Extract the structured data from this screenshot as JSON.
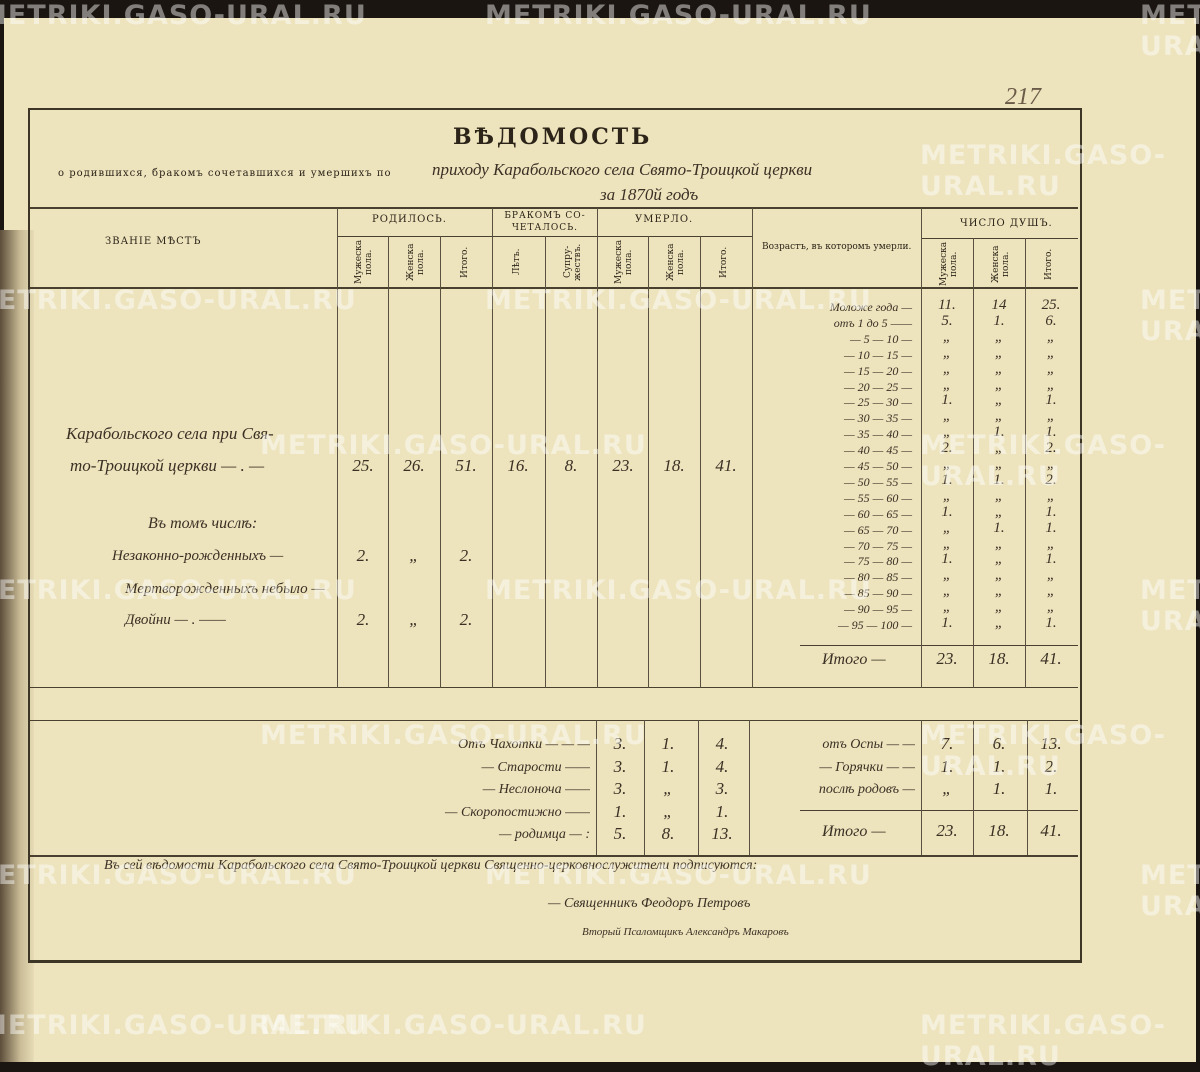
{
  "page_number": "217",
  "watermark": "METRIKI.GASO-URAL.RU",
  "header": {
    "title": "ВѢДОМОСТЬ",
    "subtitle_printed": "о родившихся, бракомъ сочетавшихся и умершихъ по",
    "subtitle_handwritten": "приходу Карабольского села Свято-Троицкой церкви",
    "year": "за 1870й годъ"
  },
  "columns": {
    "place": "ЗВАНІЕ МѢСТЪ",
    "born": {
      "label": "РОДИЛОСЬ.",
      "sub": [
        "Мужеска пола.",
        "Женска пола.",
        "Итого."
      ]
    },
    "married": {
      "label": "БРАКОМЪ СО-ЧЕТАЛОСЬ.",
      "sub": [
        "Лѣтъ.",
        "Супру-жествъ."
      ]
    },
    "died": {
      "label": "УМЕРЛО.",
      "sub": [
        "Мужеска пола.",
        "Женска пола.",
        "Итого."
      ]
    },
    "age": "Возрастъ, въ которомъ умерли.",
    "souls": {
      "label": "ЧИСЛО ДУШЪ.",
      "sub": [
        "Мужеска пола.",
        "Женска пола.",
        "Итого."
      ]
    }
  },
  "main_row": {
    "place_line1": "Карабольского села при Свя-",
    "place_line2": "то-Троицкой церкви — . —",
    "values": [
      "25.",
      "26.",
      "51.",
      "16.",
      "8.",
      "23.",
      "18.",
      "41."
    ]
  },
  "including": {
    "label": "Въ томъ числѣ:",
    "rows": [
      {
        "label": "Незаконно-рожденныхъ —",
        "values": [
          "2.",
          "„",
          "2."
        ]
      },
      {
        "label": "Мертворожденныхъ небыло —",
        "values": [
          "",
          "",
          ""
        ]
      },
      {
        "label": "Двойни — . ——",
        "values": [
          "2.",
          "„",
          "2."
        ]
      }
    ]
  },
  "ages": [
    {
      "label": "Моложе года —",
      "m": "11.",
      "f": "14",
      "t": "25."
    },
    {
      "label": "отъ 1 до 5 ——",
      "m": "5.",
      "f": "1.",
      "t": "6."
    },
    {
      "label": "— 5 — 10 —",
      "m": "„",
      "f": "„",
      "t": "„"
    },
    {
      "label": "— 10 — 15 —",
      "m": "„",
      "f": "„",
      "t": "„"
    },
    {
      "label": "— 15 — 20 —",
      "m": "„",
      "f": "„",
      "t": "„"
    },
    {
      "label": "— 20 — 25 —",
      "m": "„",
      "f": "„",
      "t": "„"
    },
    {
      "label": "— 25 — 30 —",
      "m": "1.",
      "f": "„",
      "t": "1."
    },
    {
      "label": "— 30 — 35 —",
      "m": "„",
      "f": "„",
      "t": "„"
    },
    {
      "label": "— 35 — 40 —",
      "m": "„",
      "f": "1.",
      "t": "1."
    },
    {
      "label": "— 40 — 45 —",
      "m": "2.",
      "f": "„",
      "t": "2."
    },
    {
      "label": "— 45 — 50 —",
      "m": "„",
      "f": "„",
      "t": "„"
    },
    {
      "label": "— 50 — 55 —",
      "m": "1.",
      "f": "1.",
      "t": "2."
    },
    {
      "label": "— 55 — 60 —",
      "m": "„",
      "f": "„",
      "t": "„"
    },
    {
      "label": "— 60 — 65 —",
      "m": "1.",
      "f": "„",
      "t": "1."
    },
    {
      "label": "— 65 — 70 —",
      "m": "„",
      "f": "1.",
      "t": "1."
    },
    {
      "label": "— 70 — 75 —",
      "m": "„",
      "f": "„",
      "t": "„"
    },
    {
      "label": "— 75 — 80 —",
      "m": "1.",
      "f": "„",
      "t": "1."
    },
    {
      "label": "— 80 — 85 —",
      "m": "„",
      "f": "„",
      "t": "„"
    },
    {
      "label": "— 85 — 90 —",
      "m": "„",
      "f": "„",
      "t": "„"
    },
    {
      "label": "— 90 — 95 —",
      "m": "„",
      "f": "„",
      "t": "„"
    },
    {
      "label": "— 95 — 100 —",
      "m": "1.",
      "f": "„",
      "t": "1."
    }
  ],
  "ages_total": {
    "label": "Итого —",
    "m": "23.",
    "f": "18.",
    "t": "41."
  },
  "causes_left": [
    {
      "label": "Отъ Чахотки — — —",
      "m": "3.",
      "f": "1.",
      "t": "4."
    },
    {
      "label": "— Старости ——",
      "m": "3.",
      "f": "1.",
      "t": "4."
    },
    {
      "label": "— Неслоноча ——",
      "m": "3.",
      "f": "„",
      "t": "3."
    },
    {
      "label": "— Скоропостижно ——",
      "m": "1.",
      "f": "„",
      "t": "1."
    },
    {
      "label": "— родимца — :",
      "m": "5.",
      "f": "8.",
      "t": "13."
    }
  ],
  "causes_right": [
    {
      "label": "отъ Оспы — —",
      "m": "7.",
      "f": "6.",
      "t": "13."
    },
    {
      "label": "— Горячки — —",
      "m": "1.",
      "f": "1.",
      "t": "2."
    },
    {
      "label": "послѣ родовъ —",
      "m": "„",
      "f": "1.",
      "t": "1."
    }
  ],
  "causes_total": {
    "label": "Итого —",
    "m": "23.",
    "f": "18.",
    "t": "41."
  },
  "statement": "Въ сей вѣдомости Карабольского села Свято-Троицкой церкви Священно-церковнослужители подписуются:",
  "signatures": [
    "— Священникъ Феодоръ Петровъ",
    "Вторый Псаломщикъ Александръ Макаровъ"
  ]
}
